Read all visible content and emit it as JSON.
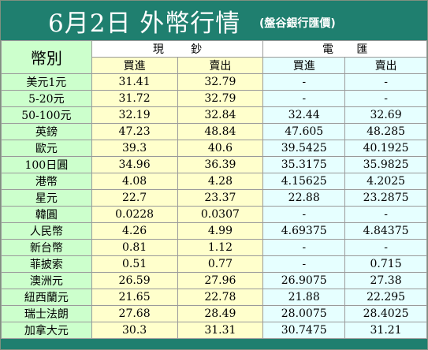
{
  "header": {
    "title": "6月2日 外幣行情",
    "subtitle": "(盤谷銀行匯價)"
  },
  "table": {
    "col_header": "幣別",
    "groups": [
      {
        "chars": [
          "現",
          "鈔"
        ],
        "buy_label": "買進",
        "sell_label": "賣出"
      },
      {
        "chars": [
          "電",
          "匯"
        ],
        "buy_label": "買進",
        "sell_label": "賣出"
      }
    ],
    "rows": [
      {
        "currency": "美元1元",
        "cash_buy": "31.41",
        "cash_sell": "32.79",
        "tt_buy": "-",
        "tt_sell": "-"
      },
      {
        "currency": "5-20元",
        "cash_buy": "31.72",
        "cash_sell": "32.79",
        "tt_buy": "-",
        "tt_sell": "-"
      },
      {
        "currency": "50-100元",
        "cash_buy": "32.19",
        "cash_sell": "32.84",
        "tt_buy": "32.44",
        "tt_sell": "32.69"
      },
      {
        "currency": "英鎊",
        "cash_buy": "47.23",
        "cash_sell": "48.84",
        "tt_buy": "47.605",
        "tt_sell": "48.285"
      },
      {
        "currency": "歐元",
        "cash_buy": "39.3",
        "cash_sell": "40.6",
        "tt_buy": "39.5425",
        "tt_sell": "40.1925"
      },
      {
        "currency": "100日圓",
        "cash_buy": "34.96",
        "cash_sell": "36.39",
        "tt_buy": "35.3175",
        "tt_sell": "35.9825"
      },
      {
        "currency": "港幣",
        "cash_buy": "4.08",
        "cash_sell": "4.28",
        "tt_buy": "4.15625",
        "tt_sell": "4.2025"
      },
      {
        "currency": "星元",
        "cash_buy": "22.7",
        "cash_sell": "23.37",
        "tt_buy": "22.88",
        "tt_sell": "23.2875"
      },
      {
        "currency": "韓圓",
        "cash_buy": "0.0228",
        "cash_sell": "0.0307",
        "tt_buy": "-",
        "tt_sell": "-"
      },
      {
        "currency": "人民幣",
        "cash_buy": "4.26",
        "cash_sell": "4.99",
        "tt_buy": "4.69375",
        "tt_sell": "4.84375"
      },
      {
        "currency": "新台幣",
        "cash_buy": "0.81",
        "cash_sell": "1.12",
        "tt_buy": "-",
        "tt_sell": "-"
      },
      {
        "currency": "菲披索",
        "cash_buy": "0.51",
        "cash_sell": "0.77",
        "tt_buy": "-",
        "tt_sell": "0.715"
      },
      {
        "currency": "澳洲元",
        "cash_buy": "26.59",
        "cash_sell": "27.96",
        "tt_buy": "26.9075",
        "tt_sell": "27.38"
      },
      {
        "currency": "紐西蘭元",
        "cash_buy": "21.65",
        "cash_sell": "22.78",
        "tt_buy": "21.88",
        "tt_sell": "22.295"
      },
      {
        "currency": "瑞士法朗",
        "cash_buy": "27.68",
        "cash_sell": "28.49",
        "tt_buy": "28.0075",
        "tt_sell": "28.4025"
      },
      {
        "currency": "加拿大元",
        "cash_buy": "30.3",
        "cash_sell": "31.31",
        "tt_buy": "30.7475",
        "tt_sell": "31.21"
      }
    ]
  }
}
